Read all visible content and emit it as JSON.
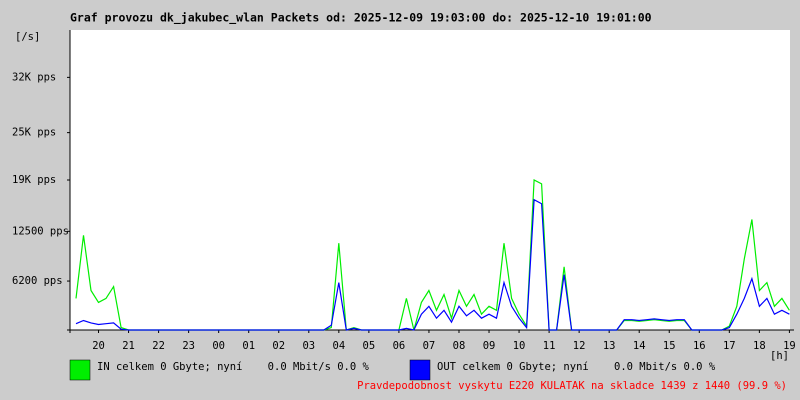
{
  "chart_data": {
    "type": "line",
    "title": "Graf provozu dk_jakubec_wlan Packets od: 2025-12-09 19:03:00 do: 2025-12-10 19:01:00",
    "y_axis_label": "[/s]",
    "x_axis_label": "[h]",
    "xlim": [
      19.05,
      43.02
    ],
    "ylim": [
      0,
      38000
    ],
    "xticks": [
      {
        "value": 20,
        "label": "20"
      },
      {
        "value": 21,
        "label": "21"
      },
      {
        "value": 22,
        "label": "22"
      },
      {
        "value": 23,
        "label": "23"
      },
      {
        "value": 24,
        "label": "00"
      },
      {
        "value": 25,
        "label": "01"
      },
      {
        "value": 26,
        "label": "02"
      },
      {
        "value": 27,
        "label": "03"
      },
      {
        "value": 28,
        "label": "04"
      },
      {
        "value": 29,
        "label": "05"
      },
      {
        "value": 30,
        "label": "06"
      },
      {
        "value": 31,
        "label": "07"
      },
      {
        "value": 32,
        "label": "08"
      },
      {
        "value": 33,
        "label": "09"
      },
      {
        "value": 34,
        "label": "10"
      },
      {
        "value": 35,
        "label": "11"
      },
      {
        "value": 36,
        "label": "12"
      },
      {
        "value": 37,
        "label": "13"
      },
      {
        "value": 38,
        "label": "14"
      },
      {
        "value": 39,
        "label": "15"
      },
      {
        "value": 40,
        "label": "16"
      },
      {
        "value": 41,
        "label": "17"
      },
      {
        "value": 42,
        "label": "18"
      },
      {
        "value": 43,
        "label": "19"
      }
    ],
    "yticks": [
      {
        "value": 6200,
        "label": "6200 pps"
      },
      {
        "value": 12500,
        "label": "12500 pps"
      },
      {
        "value": 19000,
        "label": "19K pps"
      },
      {
        "value": 25000,
        "label": "25K pps"
      },
      {
        "value": 32000,
        "label": "32K pps"
      }
    ],
    "x": [
      19.25,
      19.5,
      19.75,
      20,
      20.25,
      20.5,
      20.75,
      21,
      21.25,
      21.5,
      21.75,
      22,
      22.25,
      22.5,
      22.75,
      23,
      23.25,
      23.5,
      23.75,
      24,
      24.25,
      24.5,
      24.75,
      25,
      25.25,
      25.5,
      25.75,
      26,
      26.25,
      26.5,
      26.75,
      27,
      27.25,
      27.5,
      27.75,
      28,
      28.25,
      28.5,
      28.75,
      29,
      29.25,
      29.5,
      29.75,
      30,
      30.25,
      30.5,
      30.75,
      31,
      31.25,
      31.5,
      31.75,
      32,
      32.25,
      32.5,
      32.75,
      33,
      33.25,
      33.5,
      33.75,
      34,
      34.25,
      34.5,
      34.75,
      35,
      35.25,
      35.5,
      35.75,
      36,
      36.25,
      36.5,
      36.75,
      37,
      37.25,
      37.5,
      37.75,
      38,
      38.25,
      38.5,
      38.75,
      39,
      39.25,
      39.5,
      39.75,
      40,
      40.25,
      40.5,
      40.75,
      41,
      41.25,
      41.5,
      41.75,
      42,
      42.25,
      42.5,
      42.75,
      43
    ],
    "series": [
      {
        "name": "IN celkem 0 Gbyte; nyní    0.0 Mbit/s 0.0 %",
        "color": "#00ee00",
        "values": [
          4000,
          12000,
          5000,
          3500,
          4000,
          5500,
          300,
          0,
          0,
          0,
          0,
          0,
          0,
          0,
          0,
          0,
          0,
          0,
          0,
          0,
          0,
          0,
          0,
          0,
          0,
          0,
          0,
          0,
          0,
          0,
          0,
          0,
          0,
          0,
          300,
          11000,
          0,
          300,
          0,
          0,
          0,
          0,
          0,
          0,
          4000,
          0,
          3500,
          5000,
          2500,
          4500,
          1500,
          5000,
          3000,
          4500,
          2000,
          3000,
          2500,
          11000,
          4000,
          2000,
          500,
          19000,
          18500,
          0,
          0,
          8000,
          0,
          0,
          0,
          0,
          0,
          0,
          0,
          1200,
          1200,
          1100,
          1200,
          1300,
          1200,
          1100,
          1200,
          1200,
          0,
          0,
          0,
          0,
          0,
          500,
          3000,
          9000,
          14000,
          5000,
          6000,
          3000,
          4000,
          2500
        ]
      },
      {
        "name": "OUT celkem 0 Gbyte; nyní    0.0 Mbit/s 0.0 %",
        "color": "#0000ff",
        "values": [
          800,
          1200,
          900,
          700,
          800,
          900,
          100,
          0,
          0,
          0,
          0,
          0,
          0,
          0,
          0,
          0,
          0,
          0,
          0,
          0,
          0,
          0,
          0,
          0,
          0,
          0,
          0,
          0,
          0,
          0,
          0,
          0,
          0,
          0,
          600,
          6000,
          0,
          200,
          0,
          0,
          0,
          0,
          0,
          0,
          200,
          0,
          2000,
          3000,
          1500,
          2500,
          1000,
          3000,
          1800,
          2500,
          1500,
          2000,
          1500,
          6000,
          3000,
          1500,
          300,
          16500,
          16000,
          0,
          0,
          7000,
          0,
          0,
          0,
          0,
          0,
          0,
          0,
          1300,
          1300,
          1200,
          1300,
          1400,
          1300,
          1200,
          1300,
          1300,
          0,
          0,
          0,
          0,
          0,
          300,
          2000,
          4000,
          6500,
          3000,
          4000,
          2000,
          2500,
          2000
        ]
      }
    ],
    "footer": "Pravdepodobnost vyskytu E220 KULATAK na skladce 1439 z 1440 (99.9 %)",
    "footer_color": "#ff0000"
  }
}
